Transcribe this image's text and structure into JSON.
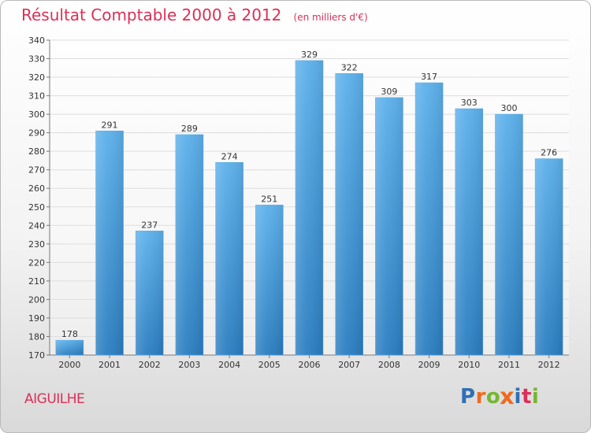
{
  "chart_data": {
    "type": "bar",
    "title": "Résultat Comptable 2000 à 2012",
    "subtitle": "(en milliers d'€)",
    "categories": [
      "2000",
      "2001",
      "2002",
      "2003",
      "2004",
      "2005",
      "2006",
      "2007",
      "2008",
      "2009",
      "2010",
      "2011",
      "2012"
    ],
    "values": [
      178,
      291,
      237,
      289,
      274,
      251,
      329,
      322,
      309,
      317,
      303,
      300,
      276
    ],
    "ylim": [
      170,
      340
    ],
    "yticks": [
      170,
      180,
      190,
      200,
      210,
      220,
      230,
      240,
      250,
      260,
      270,
      280,
      290,
      300,
      310,
      320,
      330,
      340
    ],
    "grid": true,
    "bar_color": "#3f97d8",
    "title_color": "#dd2e57"
  },
  "footer": {
    "place": "AIGUILHE",
    "brand": "Proxiti",
    "brand_letters": [
      {
        "char": "P",
        "color": "#2f6fb5"
      },
      {
        "char": "r",
        "color": "#ef6a1e"
      },
      {
        "char": "o",
        "color": "#74b72e"
      },
      {
        "char": "x",
        "color": "#ef6a1e"
      },
      {
        "char": "i",
        "color": "#2f6fb5"
      },
      {
        "char": "t",
        "color": "#dd2e57"
      },
      {
        "char": "i",
        "color": "#74b72e"
      }
    ]
  }
}
